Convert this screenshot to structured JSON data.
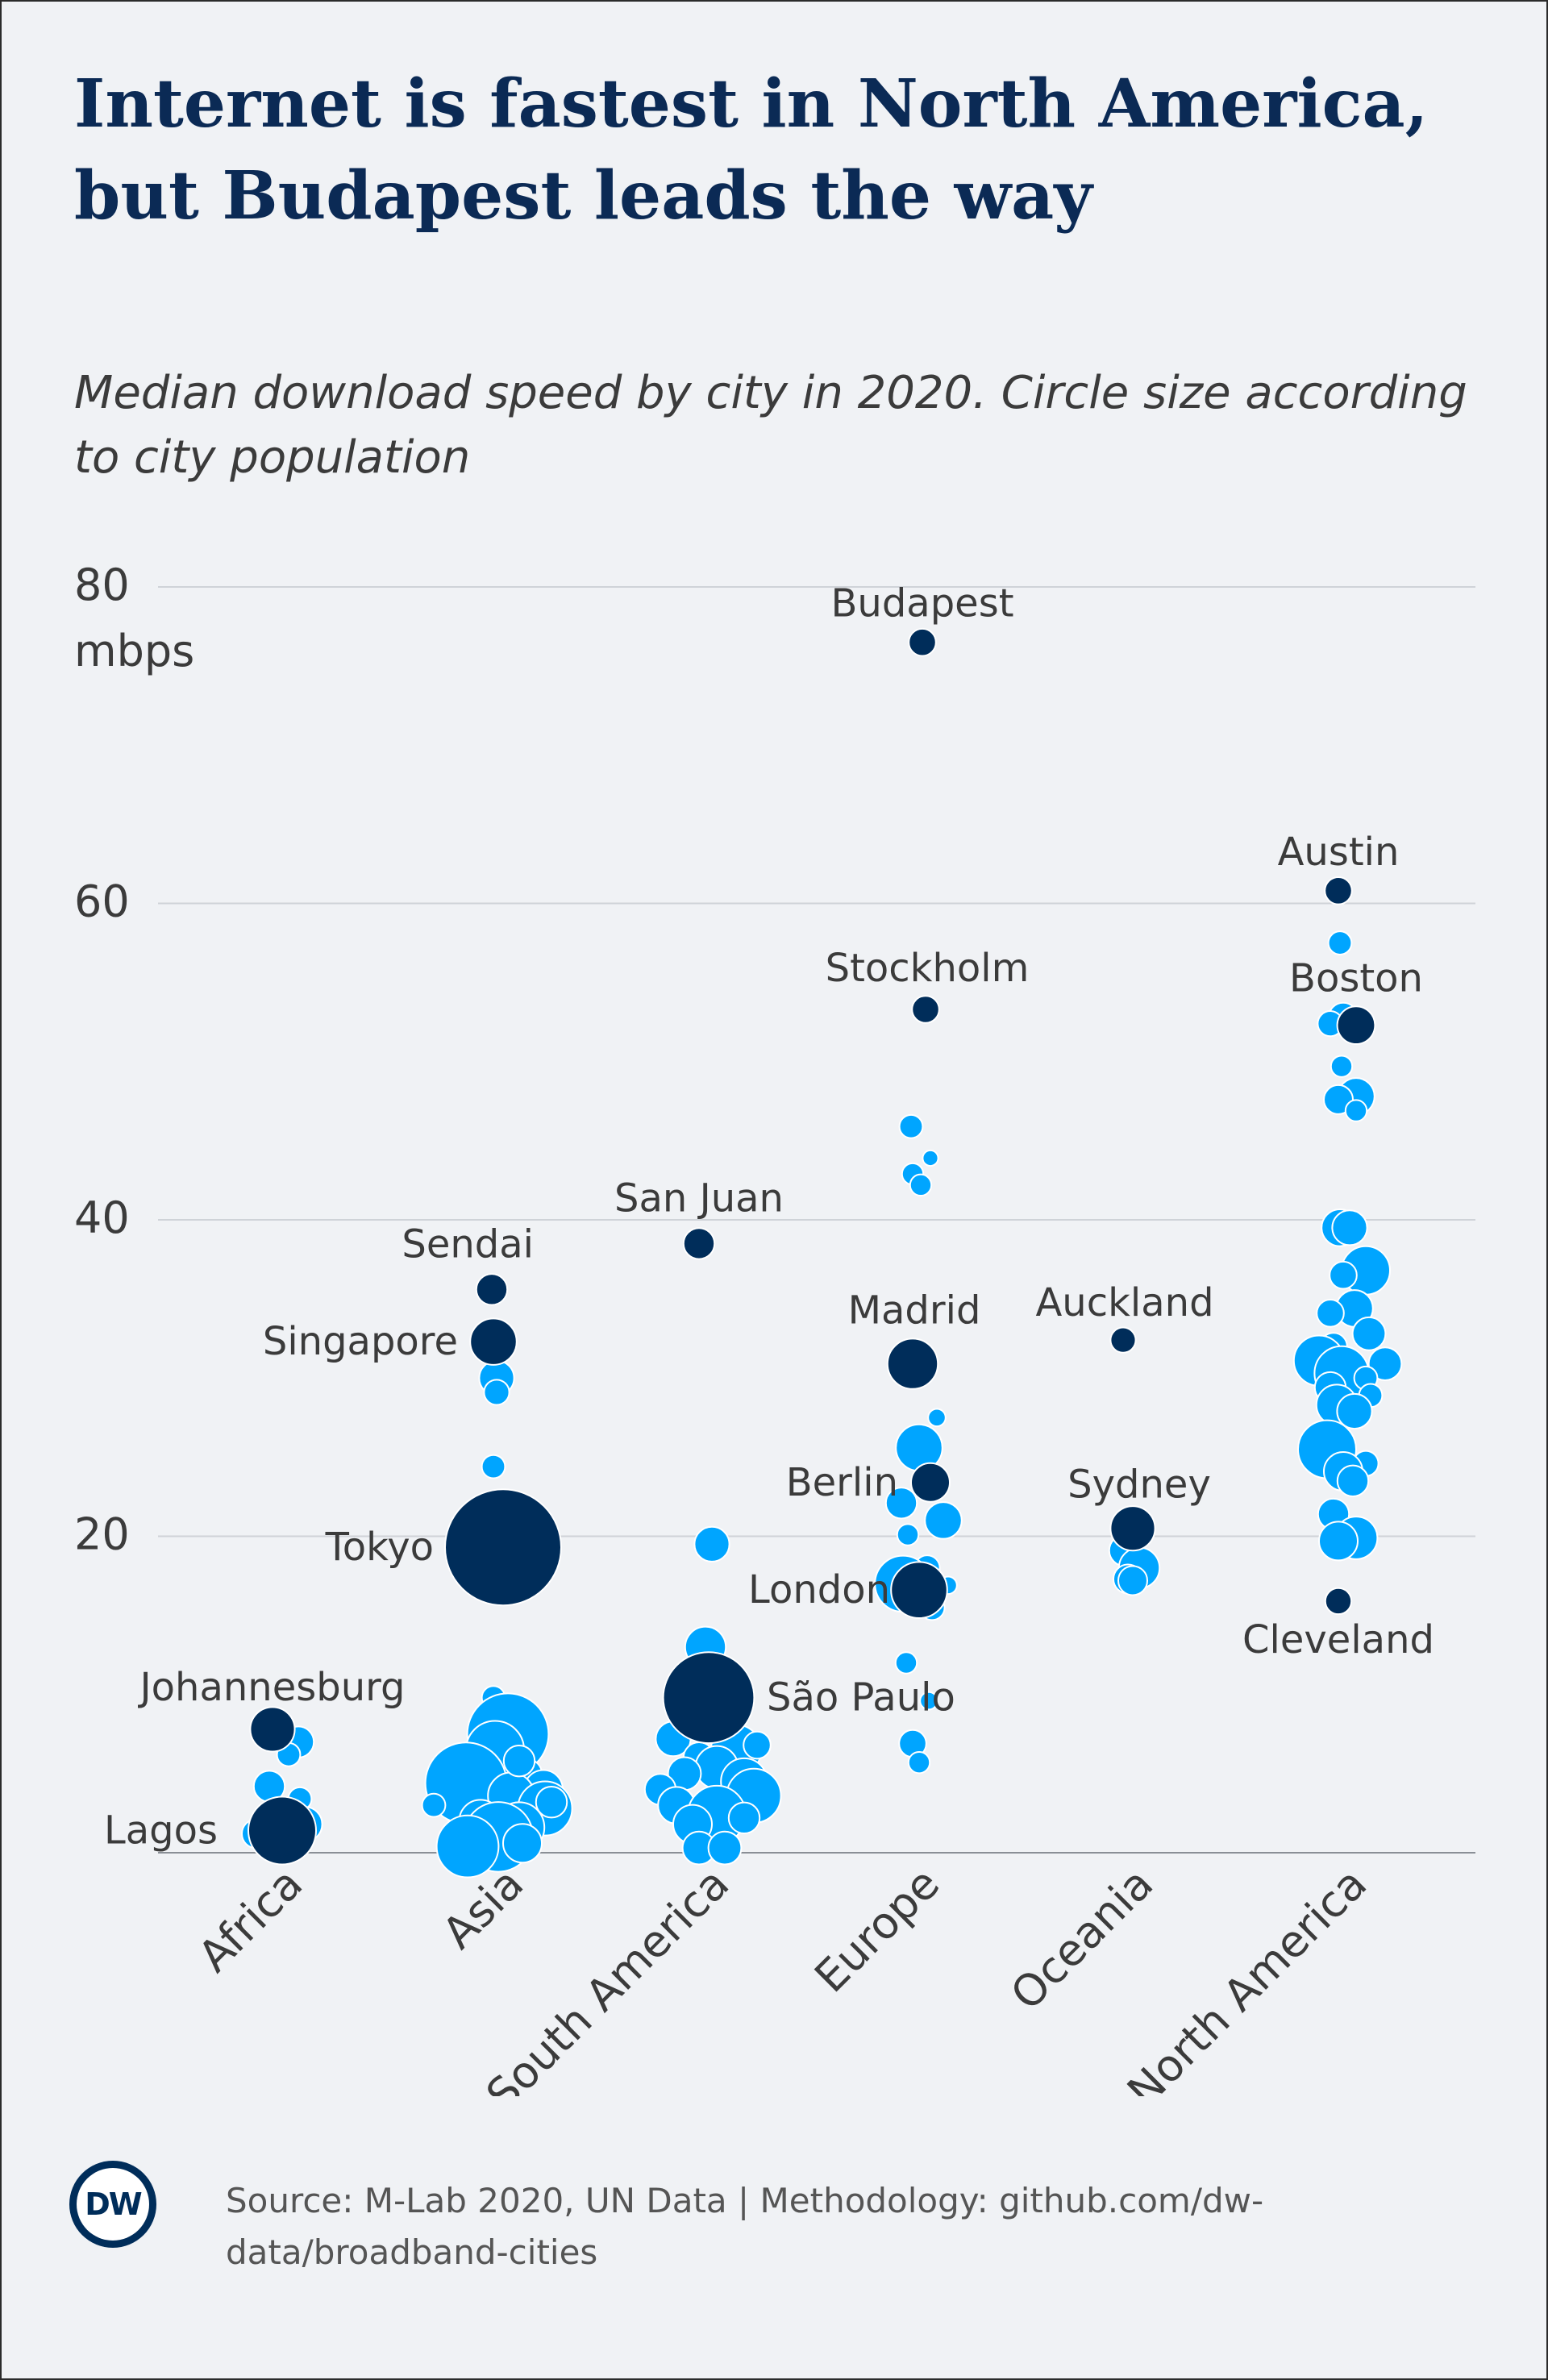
{
  "header": {
    "title": "Internet is fastest in North America, but Budapest leads the way",
    "subtitle": "Median download speed by city in 2020. Circle size according to city population"
  },
  "footer": {
    "source": "Source: M-Lab 2020, UN Data | Methodology: github.com/dw-data/broadband-cities",
    "logo_text": "DW"
  },
  "colors": {
    "labeled_city": "#002d5a",
    "other_city": "#00a5ff",
    "gridline": "#cfd3d8",
    "background": "#f0f2f5"
  },
  "chart_data": {
    "type": "scatter",
    "title": "Internet is fastest in North America, but Budapest leads the way",
    "subtitle": "Median download speed by city in 2020. Circle size according to city population",
    "ylabel": "mbps",
    "ylim": [
      0,
      80
    ],
    "yticks": [
      20,
      40,
      60,
      80
    ],
    "unit_label": "mbps",
    "categories": [
      "Africa",
      "Asia",
      "South America",
      "Europe",
      "Oceania",
      "North America"
    ],
    "grid": true,
    "labeled_cities": [
      {
        "name": "Budapest",
        "region": "Europe",
        "value": 76.5,
        "size": 1.4,
        "offset": 0.02
      },
      {
        "name": "Austin",
        "region": "North America",
        "value": 60.8,
        "size": 1.4,
        "offset": -0.05
      },
      {
        "name": "Boston",
        "region": "North America",
        "value": 52.3,
        "size": 1.95,
        "offset": 0.06
      },
      {
        "name": "Stockholm",
        "region": "Europe",
        "value": 53.3,
        "size": 1.4,
        "offset": 0.04
      },
      {
        "name": "San Juan",
        "region": "South America",
        "value": 38.5,
        "size": 1.6,
        "offset": -0.06
      },
      {
        "name": "Sendai",
        "region": "Asia",
        "value": 35.6,
        "size": 1.6,
        "offset": -0.07
      },
      {
        "name": "Singapore",
        "region": "Asia",
        "value": 32.3,
        "size": 2.4,
        "offset": -0.06
      },
      {
        "name": "Madrid",
        "region": "Europe",
        "value": 30.9,
        "size": 2.6,
        "offset": -0.04
      },
      {
        "name": "Auckland",
        "region": "Oceania",
        "value": 32.4,
        "size": 1.3,
        "offset": -0.06
      },
      {
        "name": "Berlin",
        "region": "Europe",
        "value": 23.4,
        "size": 2.0,
        "offset": 0.07
      },
      {
        "name": "Sydney",
        "region": "Oceania",
        "value": 20.5,
        "size": 2.3,
        "offset": 0.0
      },
      {
        "name": "Tokyo",
        "region": "Asia",
        "value": 19.3,
        "size": 6.0,
        "offset": 0.0
      },
      {
        "name": "London",
        "region": "Europe",
        "value": 16.6,
        "size": 2.9,
        "offset": 0.0
      },
      {
        "name": "Cleveland",
        "region": "North America",
        "value": 15.9,
        "size": 1.35,
        "offset": -0.05
      },
      {
        "name": "São Paulo",
        "region": "South America",
        "value": 9.8,
        "size": 4.7,
        "offset": 0.0
      },
      {
        "name": "Johannesburg",
        "region": "Africa",
        "value": 7.8,
        "size": 2.3,
        "offset": -0.06
      },
      {
        "name": "Lagos",
        "region": "Africa",
        "value": 1.4,
        "size": 3.5,
        "offset": 0.0
      }
    ],
    "other_cities": {
      "Africa": [
        {
          "value": 7.0,
          "size": 1.6,
          "offset": 0.1
        },
        {
          "value": 6.2,
          "size": 1.2,
          "offset": 0.04
        },
        {
          "value": 4.2,
          "size": 1.6,
          "offset": -0.08
        },
        {
          "value": 3.4,
          "size": 1.2,
          "offset": 0.11
        },
        {
          "value": 2.2,
          "size": 1.5,
          "offset": -0.02
        },
        {
          "value": 1.8,
          "size": 1.8,
          "offset": 0.14
        },
        {
          "value": 1.2,
          "size": 1.5,
          "offset": -0.16
        },
        {
          "value": 0.8,
          "size": 1.8,
          "offset": -0.06
        },
        {
          "value": 0.3,
          "size": 1.3,
          "offset": 0.05
        }
      ],
      "Asia": [
        {
          "value": 30.0,
          "size": 1.8,
          "offset": -0.04
        },
        {
          "value": 29.1,
          "size": 1.3,
          "offset": -0.04
        },
        {
          "value": 24.4,
          "size": 1.2,
          "offset": -0.06
        },
        {
          "value": 9.8,
          "size": 1.2,
          "offset": -0.06
        },
        {
          "value": 7.5,
          "size": 4.2,
          "offset": 0.03
        },
        {
          "value": 6.5,
          "size": 3.0,
          "offset": -0.05
        },
        {
          "value": 5.6,
          "size": 2.0,
          "offset": -0.18
        },
        {
          "value": 5.0,
          "size": 1.5,
          "offset": 0.15
        },
        {
          "value": 4.4,
          "size": 4.2,
          "offset": -0.23
        },
        {
          "value": 4.0,
          "size": 2.0,
          "offset": 0.25
        },
        {
          "value": 3.6,
          "size": 2.4,
          "offset": 0.05
        },
        {
          "value": 2.8,
          "size": 2.8,
          "offset": 0.26
        },
        {
          "value": 3.0,
          "size": 1.2,
          "offset": -0.43
        },
        {
          "value": 2.0,
          "size": 2.2,
          "offset": -0.14
        },
        {
          "value": 1.6,
          "size": 2.6,
          "offset": 0.1
        },
        {
          "value": 1.0,
          "size": 3.6,
          "offset": -0.03
        },
        {
          "value": 0.6,
          "size": 2.0,
          "offset": 0.12
        },
        {
          "value": 0.4,
          "size": 3.2,
          "offset": -0.22
        },
        {
          "value": 3.2,
          "size": 1.6,
          "offset": 0.3
        },
        {
          "value": 5.8,
          "size": 1.6,
          "offset": 0.1
        }
      ],
      "South America": [
        {
          "value": 19.5,
          "size": 1.8,
          "offset": 0.02
        },
        {
          "value": 13.0,
          "size": 2.1,
          "offset": -0.02
        },
        {
          "value": 11.5,
          "size": 1.5,
          "offset": -0.02
        },
        {
          "value": 7.2,
          "size": 1.8,
          "offset": -0.22
        },
        {
          "value": 6.5,
          "size": 2.6,
          "offset": 0.17
        },
        {
          "value": 6.0,
          "size": 1.6,
          "offset": -0.06
        },
        {
          "value": 5.4,
          "size": 2.2,
          "offset": 0.05
        },
        {
          "value": 5.0,
          "size": 1.7,
          "offset": -0.15
        },
        {
          "value": 4.5,
          "size": 2.4,
          "offset": 0.22
        },
        {
          "value": 4.0,
          "size": 1.6,
          "offset": -0.3
        },
        {
          "value": 3.6,
          "size": 2.8,
          "offset": 0.28
        },
        {
          "value": 3.0,
          "size": 1.9,
          "offset": -0.2
        },
        {
          "value": 2.4,
          "size": 3.0,
          "offset": 0.05
        },
        {
          "value": 1.8,
          "size": 2.0,
          "offset": -0.1
        },
        {
          "value": 0.3,
          "size": 1.7,
          "offset": -0.06
        },
        {
          "value": 0.3,
          "size": 1.7,
          "offset": 0.1
        },
        {
          "value": 2.2,
          "size": 1.6,
          "offset": 0.22
        },
        {
          "value": 6.8,
          "size": 1.4,
          "offset": 0.3
        }
      ],
      "Europe": [
        {
          "value": 45.9,
          "size": 1.2,
          "offset": -0.05
        },
        {
          "value": 43.9,
          "size": 0.8,
          "offset": 0.07
        },
        {
          "value": 42.9,
          "size": 1.1,
          "offset": -0.04
        },
        {
          "value": 42.2,
          "size": 1.1,
          "offset": 0.01
        },
        {
          "value": 27.5,
          "size": 0.9,
          "offset": 0.11
        },
        {
          "value": 25.6,
          "size": 2.4,
          "offset": 0.0
        },
        {
          "value": 22.1,
          "size": 1.6,
          "offset": -0.11
        },
        {
          "value": 21.0,
          "size": 1.9,
          "offset": 0.15
        },
        {
          "value": 20.1,
          "size": 1.1,
          "offset": -0.07
        },
        {
          "value": 18.0,
          "size": 1.3,
          "offset": 0.05
        },
        {
          "value": 17.0,
          "size": 2.9,
          "offset": -0.1
        },
        {
          "value": 16.9,
          "size": 0.9,
          "offset": 0.18
        },
        {
          "value": 15.5,
          "size": 1.3,
          "offset": 0.08
        },
        {
          "value": 12.0,
          "size": 1.1,
          "offset": -0.08
        },
        {
          "value": 9.6,
          "size": 0.9,
          "offset": 0.06
        },
        {
          "value": 6.9,
          "size": 1.4,
          "offset": -0.04
        },
        {
          "value": 5.7,
          "size": 1.1,
          "offset": 0.0
        }
      ],
      "Oceania": [
        {
          "value": 19.1,
          "size": 1.6,
          "offset": -0.05
        },
        {
          "value": 18.0,
          "size": 2.1,
          "offset": 0.04
        },
        {
          "value": 17.3,
          "size": 1.5,
          "offset": -0.03
        },
        {
          "value": 17.2,
          "size": 1.5,
          "offset": 0.0
        }
      ],
      "North America": [
        {
          "value": 57.5,
          "size": 1.2,
          "offset": -0.04
        },
        {
          "value": 52.8,
          "size": 1.5,
          "offset": -0.02
        },
        {
          "value": 52.4,
          "size": 1.3,
          "offset": -0.1
        },
        {
          "value": 49.7,
          "size": 1.1,
          "offset": -0.03
        },
        {
          "value": 47.8,
          "size": 1.9,
          "offset": 0.06
        },
        {
          "value": 47.6,
          "size": 1.5,
          "offset": -0.05
        },
        {
          "value": 46.9,
          "size": 1.1,
          "offset": 0.06
        },
        {
          "value": 39.5,
          "size": 1.9,
          "offset": -0.04
        },
        {
          "value": 39.5,
          "size": 1.8,
          "offset": 0.02
        },
        {
          "value": 36.8,
          "size": 2.5,
          "offset": 0.12
        },
        {
          "value": 36.5,
          "size": 1.4,
          "offset": -0.02
        },
        {
          "value": 34.4,
          "size": 1.9,
          "offset": 0.05
        },
        {
          "value": 34.1,
          "size": 1.4,
          "offset": -0.1
        },
        {
          "value": 32.8,
          "size": 1.7,
          "offset": 0.14
        },
        {
          "value": 32.0,
          "size": 1.4,
          "offset": -0.08
        },
        {
          "value": 31.1,
          "size": 2.6,
          "offset": -0.17
        },
        {
          "value": 30.9,
          "size": 1.7,
          "offset": 0.24
        },
        {
          "value": 30.3,
          "size": 2.8,
          "offset": -0.03
        },
        {
          "value": 30.0,
          "size": 1.2,
          "offset": 0.12
        },
        {
          "value": 29.4,
          "size": 1.6,
          "offset": -0.1
        },
        {
          "value": 28.9,
          "size": 1.2,
          "offset": 0.15
        },
        {
          "value": 28.3,
          "size": 2.1,
          "offset": -0.06
        },
        {
          "value": 27.9,
          "size": 1.8,
          "offset": 0.05
        },
        {
          "value": 25.5,
          "size": 3.0,
          "offset": -0.12
        },
        {
          "value": 24.6,
          "size": 1.3,
          "offset": 0.12
        },
        {
          "value": 24.1,
          "size": 2.0,
          "offset": -0.02
        },
        {
          "value": 23.5,
          "size": 1.6,
          "offset": 0.04
        },
        {
          "value": 21.4,
          "size": 1.6,
          "offset": -0.08
        },
        {
          "value": 19.9,
          "size": 2.2,
          "offset": 0.06
        },
        {
          "value": 19.7,
          "size": 2.0,
          "offset": -0.05
        }
      ]
    }
  }
}
